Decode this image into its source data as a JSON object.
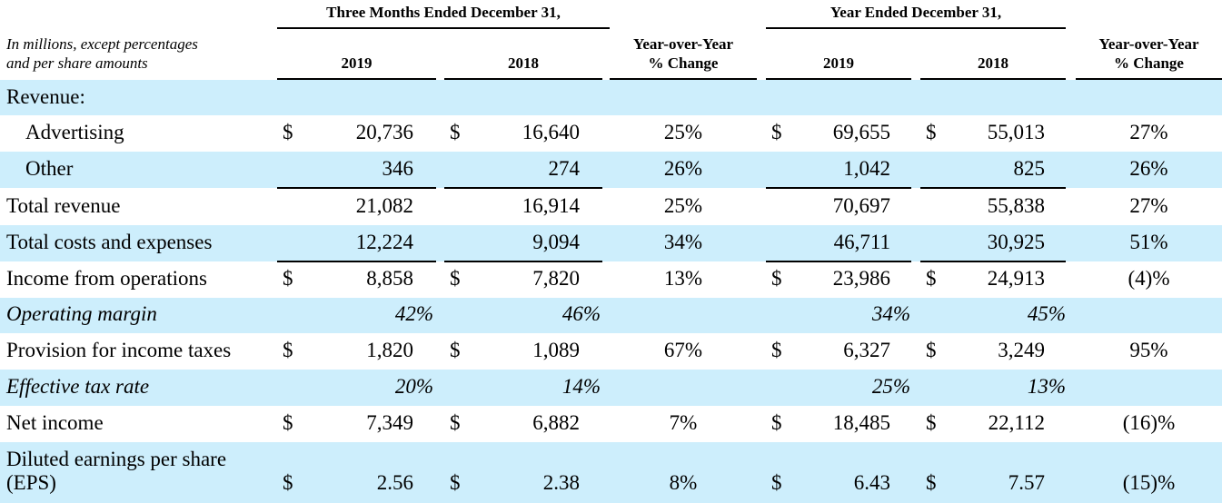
{
  "header": {
    "group1": "Three Months Ended December 31,",
    "group2": "Year Ended December 31,",
    "note_line1": "In millions, except percentages",
    "note_line2": "and per share amounts",
    "col_2019_q": "2019",
    "col_2018_q": "2018",
    "yoy_q_line1": "Year-over-Year",
    "yoy_q_line2": "% Change",
    "col_2019_y": "2019",
    "col_2018_y": "2018",
    "yoy_y_line1": "Year-over-Year",
    "yoy_y_line2": "% Change"
  },
  "rows": {
    "revenue": {
      "label": "Revenue:"
    },
    "advertising": {
      "label": "Advertising",
      "cur1": "$",
      "q2019": "20,736",
      "cur2": "$",
      "q2018": "16,640",
      "qchg": "25%",
      "cur3": "$",
      "y2019": "69,655",
      "cur4": "$",
      "y2018": "55,013",
      "ychg": "27%"
    },
    "other": {
      "label": "Other",
      "q2019": "346",
      "q2018": "274",
      "qchg": "26%",
      "y2019": "1,042",
      "y2018": "825",
      "ychg": "26%"
    },
    "total_revenue": {
      "label": "Total revenue",
      "q2019": "21,082",
      "q2018": "16,914",
      "qchg": "25%",
      "y2019": "70,697",
      "y2018": "55,838",
      "ychg": "27%"
    },
    "total_costs": {
      "label": "Total costs and expenses",
      "q2019": "12,224",
      "q2018": "9,094",
      "qchg": "34%",
      "y2019": "46,711",
      "y2018": "30,925",
      "ychg": "51%"
    },
    "income_ops": {
      "label": "Income from operations",
      "cur1": "$",
      "q2019": "8,858",
      "cur2": "$",
      "q2018": "7,820",
      "qchg": "13%",
      "cur3": "$",
      "y2019": "23,986",
      "cur4": "$",
      "y2018": "24,913",
      "ychg": "(4)%"
    },
    "op_margin": {
      "label": "Operating margin",
      "q2019": "42%",
      "q2018": "46%",
      "y2019": "34%",
      "y2018": "45%"
    },
    "provision": {
      "label": "Provision for income taxes",
      "cur1": "$",
      "q2019": "1,820",
      "cur2": "$",
      "q2018": "1,089",
      "qchg": "67%",
      "cur3": "$",
      "y2019": "6,327",
      "cur4": "$",
      "y2018": "3,249",
      "ychg": "95%"
    },
    "eff_tax": {
      "label": "Effective tax rate",
      "q2019": "20%",
      "q2018": "14%",
      "y2019": "25%",
      "y2018": "13%"
    },
    "net_income": {
      "label": "Net income",
      "cur1": "$",
      "q2019": "7,349",
      "cur2": "$",
      "q2018": "6,882",
      "qchg": "7%",
      "cur3": "$",
      "y2019": "18,485",
      "cur4": "$",
      "y2018": "22,112",
      "ychg": "(16)%"
    },
    "eps": {
      "label_line1": "Diluted earnings per share",
      "label_line2": "(EPS)",
      "cur1": "$",
      "q2019": "2.56",
      "cur2": "$",
      "q2018": "2.38",
      "qchg": "8%",
      "cur3": "$",
      "y2019": "6.43",
      "cur4": "$",
      "y2018": "7.57",
      "ychg": "(15)%"
    }
  }
}
